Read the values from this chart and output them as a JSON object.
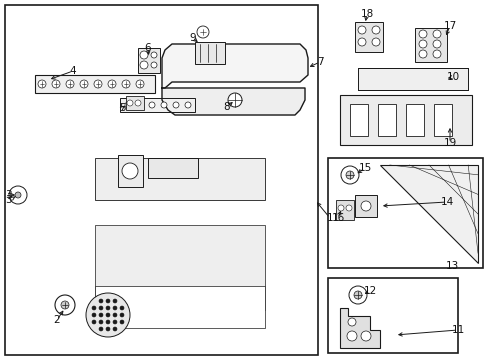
{
  "bg_color": "#ffffff",
  "lc": "#1a1a1a",
  "tc": "#111111",
  "figsize": [
    4.89,
    3.6
  ],
  "dpi": 100,
  "lw_main": 1.0,
  "lw_thin": 0.6,
  "lw_border": 1.2
}
